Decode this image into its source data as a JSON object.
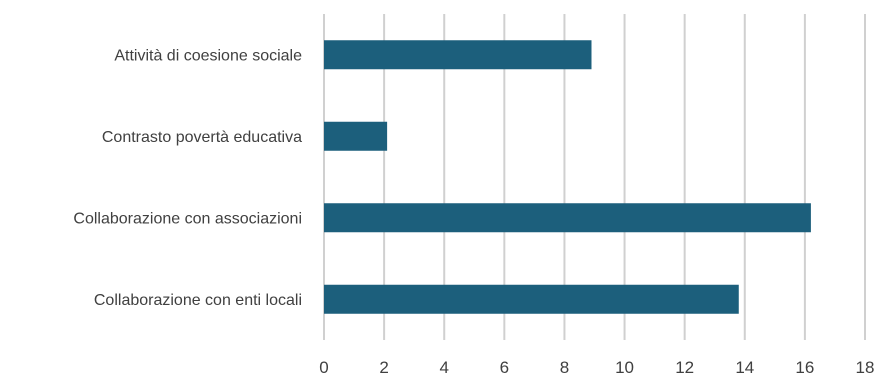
{
  "chart_data": {
    "type": "bar",
    "orientation": "horizontal",
    "categories": [
      "Attività di coesione sociale",
      "Contrasto povertà educativa",
      "Collaborazione con associazioni",
      "Collaborazione con enti locali"
    ],
    "values": [
      8.9,
      2.1,
      16.2,
      13.8
    ],
    "xlim": [
      0,
      18
    ],
    "xticks": [
      "0",
      "2",
      "4",
      "6",
      "8",
      "10",
      "12",
      "14",
      "16",
      "18"
    ],
    "grid": "vertical",
    "legend": "none",
    "bar_color": "#1c5f7c"
  }
}
